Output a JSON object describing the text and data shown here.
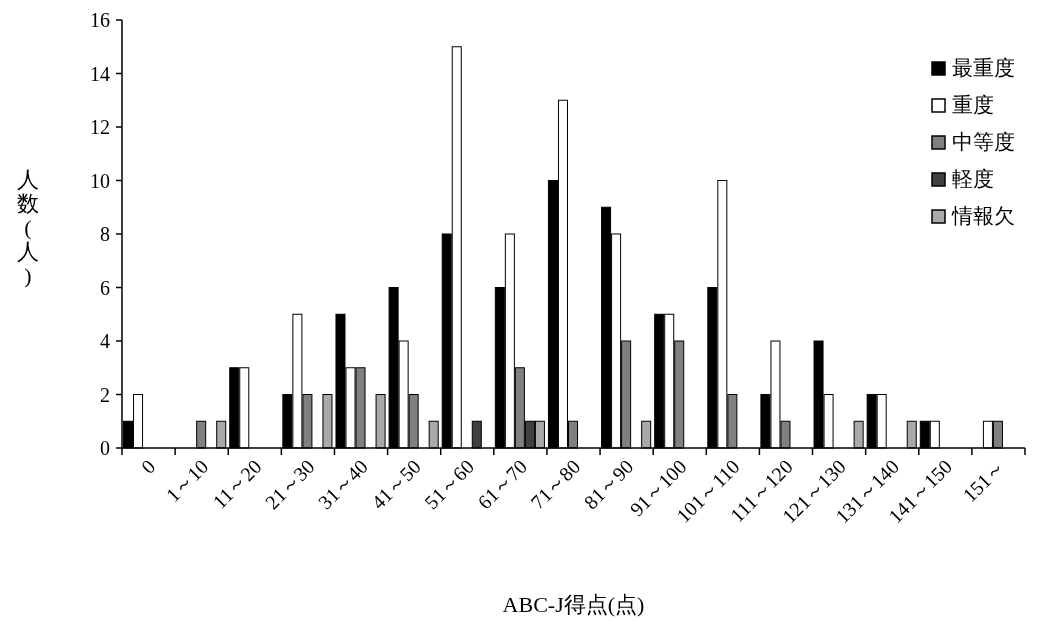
{
  "chart_data": {
    "type": "bar",
    "xlabel": "ABC-J得点(点)",
    "ylabel": "人数(人)",
    "categories": [
      "0",
      "1～10",
      "11～20",
      "21～30",
      "31～40",
      "41～50",
      "51～60",
      "61～70",
      "71～80",
      "81～90",
      "91～100",
      "101～110",
      "111～120",
      "121～130",
      "131～140",
      "141～150",
      "151～"
    ],
    "series": [
      {
        "name": "最重度",
        "color": "#000000",
        "values": [
          1,
          0,
          3,
          2,
          5,
          6,
          8,
          6,
          10,
          9,
          5,
          6,
          2,
          4,
          2,
          1,
          0
        ]
      },
      {
        "name": "重度",
        "color": "#ffffff",
        "values": [
          2,
          0,
          3,
          5,
          3,
          4,
          15,
          8,
          13,
          8,
          5,
          10,
          4,
          2,
          2,
          1,
          1
        ]
      },
      {
        "name": "中等度",
        "color": "#808080",
        "values": [
          0,
          1,
          0,
          2,
          3,
          2,
          0,
          3,
          1,
          4,
          4,
          2,
          1,
          0,
          0,
          0,
          1
        ]
      },
      {
        "name": "軽度",
        "color": "#404040",
        "values": [
          0,
          0,
          0,
          0,
          0,
          0,
          1,
          1,
          0,
          0,
          0,
          0,
          0,
          0,
          0,
          0,
          0
        ]
      },
      {
        "name": "情報欠",
        "color": "#a9a9a9",
        "values": [
          0,
          1,
          0,
          2,
          2,
          1,
          0,
          1,
          0,
          1,
          0,
          0,
          0,
          1,
          1,
          0,
          0
        ]
      }
    ],
    "ylim": [
      0,
      16
    ],
    "yticks": [
      0,
      2,
      4,
      6,
      8,
      10,
      12,
      14,
      16
    ],
    "grid": false,
    "legend": "top right"
  }
}
